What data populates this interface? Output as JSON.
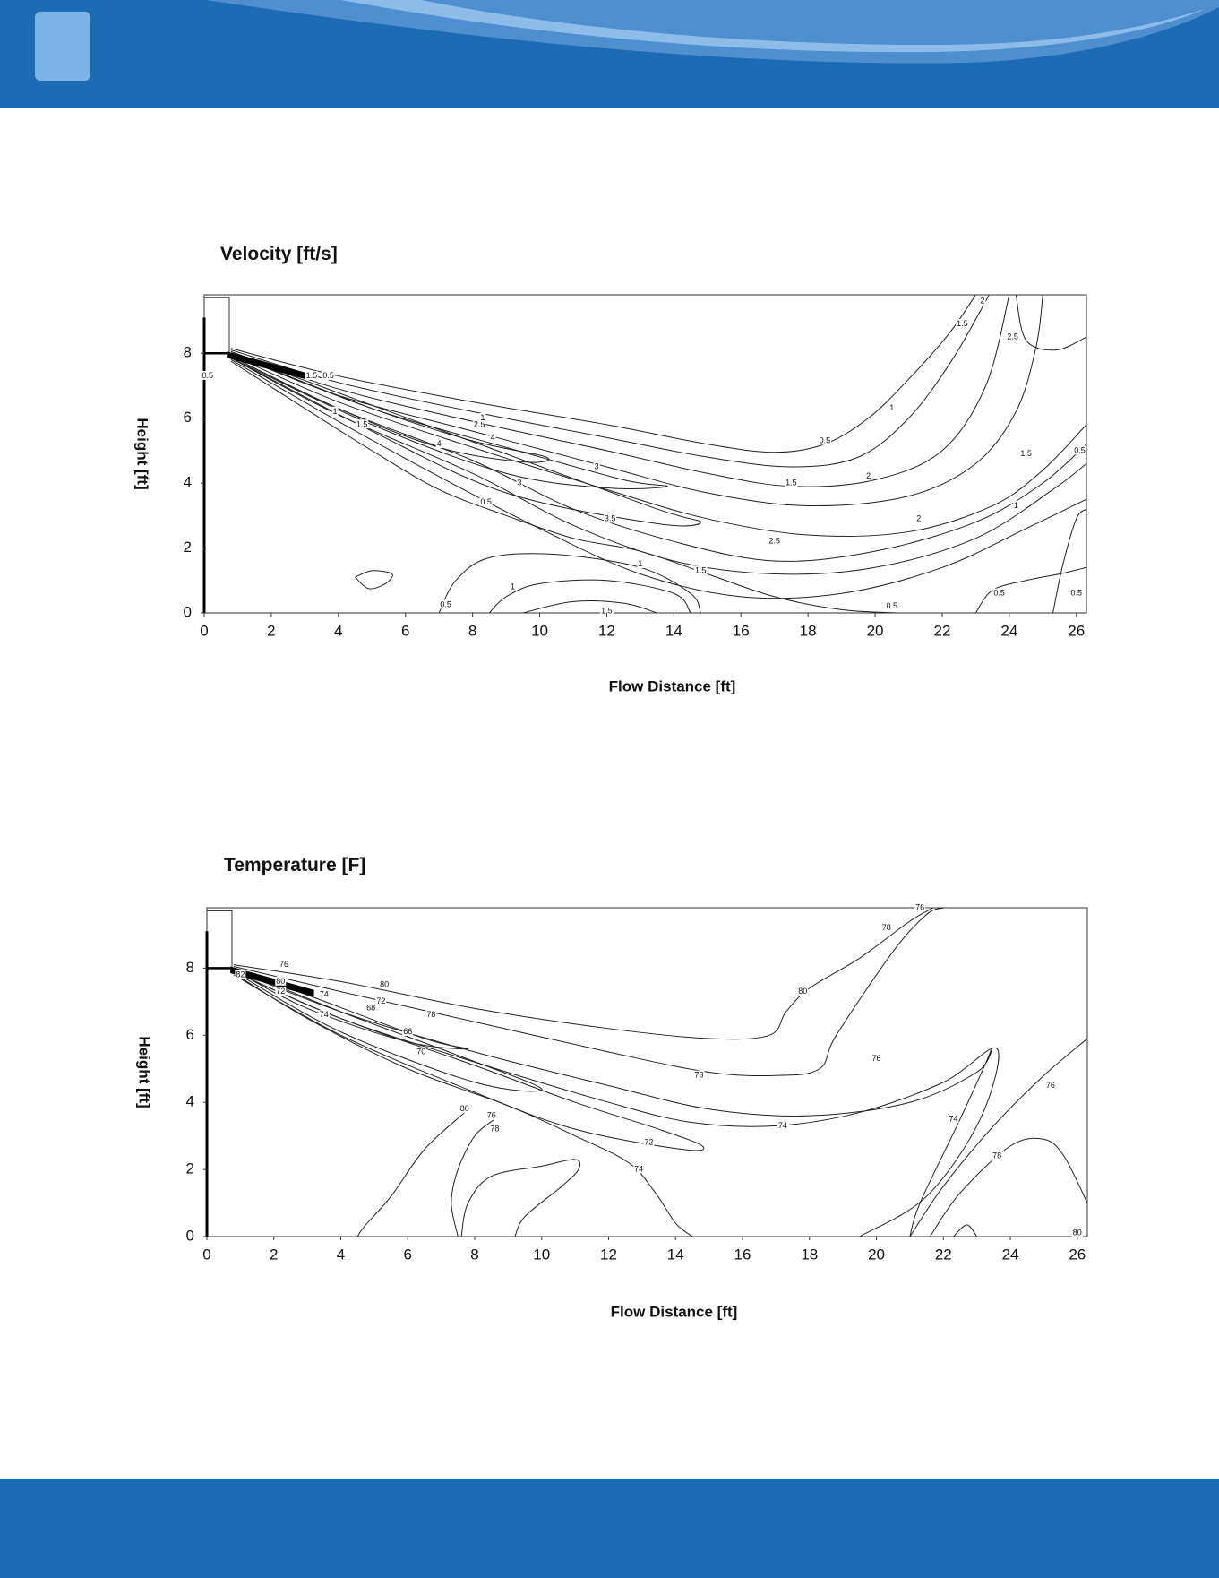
{
  "chart_data": [
    {
      "type": "contour",
      "title": "Velocity [ft/s]",
      "x_label": "Flow Distance [ft]",
      "y_label": "Height [ft]",
      "xlim": [
        0,
        26.3
      ],
      "ylim": [
        0,
        9.8
      ],
      "xticks": [
        0,
        2,
        4,
        6,
        8,
        10,
        12,
        14,
        16,
        18,
        20,
        22,
        24,
        26
      ],
      "yticks": [
        0,
        2,
        4,
        6,
        8
      ],
      "color": "#222222",
      "contours": [
        {
          "x": [
            0.8,
            4,
            8,
            12,
            15,
            17,
            18.5,
            19.8,
            21,
            22.2,
            23
          ],
          "y": [
            8.15,
            7.3,
            6.5,
            5.8,
            5.2,
            4.95,
            5.2,
            6,
            7.2,
            8.6,
            9.8
          ]
        },
        {
          "x": [
            0.8,
            4,
            8,
            12,
            15,
            17.5,
            19.5,
            21,
            22.3,
            23.4
          ],
          "y": [
            8.1,
            7.1,
            6.2,
            5.4,
            4.8,
            4.5,
            4.8,
            6,
            7.8,
            9.8
          ]
        },
        {
          "x": [
            0.8,
            4,
            8,
            12,
            15,
            17.5,
            20,
            22,
            23.3,
            24
          ],
          "y": [
            8.05,
            6.9,
            5.9,
            5,
            4.3,
            3.9,
            4.1,
            5,
            7,
            9.8
          ]
        },
        {
          "x": [
            0.8,
            4,
            8,
            12,
            15,
            18,
            21,
            23,
            24.2,
            24.8,
            25
          ],
          "y": [
            8,
            6.7,
            5.6,
            4.5,
            3.7,
            3.3,
            3.6,
            4.6,
            6.2,
            8.2,
            9.8
          ]
        },
        {
          "x": [
            0.8,
            4,
            8,
            12,
            15,
            18,
            21,
            23.5,
            25,
            26.3
          ],
          "y": [
            7.95,
            6.5,
            5.1,
            3.8,
            2.9,
            2.4,
            2.5,
            3.3,
            4.4,
            5.8
          ]
        },
        {
          "x": [
            0.8,
            4,
            8,
            11,
            14,
            17,
            20,
            23,
            25,
            26.3
          ],
          "y": [
            7.9,
            6.3,
            4.7,
            3.2,
            2.2,
            1.6,
            1.9,
            2.8,
            4,
            5.2
          ]
        },
        {
          "x": [
            0.8,
            4,
            8,
            11,
            14,
            17,
            20,
            23,
            25.3,
            26.3
          ],
          "y": [
            7.85,
            6.1,
            4.3,
            2.7,
            1.6,
            1.2,
            1.4,
            2.3,
            3.8,
            4.6
          ]
        },
        {
          "x": [
            0.8,
            4,
            7,
            10,
            13,
            16,
            19,
            22,
            24.5,
            26.3
          ],
          "y": [
            7.8,
            5.9,
            4.2,
            2.6,
            1.2,
            0.5,
            0.6,
            1.4,
            2.6,
            3.5
          ]
        },
        {
          "x": [
            0.8,
            3,
            5,
            7,
            9,
            11,
            13,
            15,
            17,
            19,
            20.7
          ],
          "y": [
            7.75,
            6.3,
            5,
            3.8,
            3,
            2.3,
            1.9,
            1.2,
            0.5,
            0.1,
            0
          ]
        },
        {
          "x": [
            0.8,
            5,
            9,
            12.5,
            13.8,
            12,
            9,
            5,
            0.8
          ],
          "y": [
            8,
            6.3,
            5.1,
            4.1,
            3.9,
            3.85,
            4.3,
            5.8,
            7.85
          ]
        },
        {
          "x": [
            0.8,
            5,
            9,
            13.5,
            14.8,
            13.5,
            9,
            5,
            0.8
          ],
          "y": [
            8,
            6.4,
            4.9,
            3.2,
            2.8,
            2.75,
            3.7,
            5.6,
            7.85
          ]
        },
        {
          "x": [
            0.8,
            5,
            8,
            10.2,
            9.5,
            7,
            4,
            0.8
          ],
          "y": [
            8,
            6.3,
            5.3,
            4.8,
            4.65,
            5.1,
            6.3,
            7.9
          ]
        },
        {
          "x": [
            4.5,
            5,
            5.6,
            5.4,
            4.9,
            4.5
          ],
          "y": [
            1.1,
            1.3,
            1.2,
            0.9,
            0.75,
            1.1
          ]
        },
        {
          "x": [
            7,
            7.5,
            8.5,
            10.5,
            13,
            14.5,
            14.8
          ],
          "y": [
            0,
            1,
            1.7,
            1.8,
            1.4,
            0.6,
            0
          ]
        },
        {
          "x": [
            8.5,
            9,
            10,
            12,
            14,
            14.5
          ],
          "y": [
            0,
            0.5,
            0.9,
            1,
            0.6,
            0
          ]
        },
        {
          "x": [
            9.5,
            11,
            12.5,
            13.5
          ],
          "y": [
            0,
            0.35,
            0.3,
            0
          ]
        },
        {
          "x": [
            23,
            23.5,
            24.5,
            25.5,
            26.3
          ],
          "y": [
            0,
            0.7,
            1,
            1.2,
            1.4
          ]
        },
        {
          "x": [
            24.2,
            24.5,
            25.4,
            26.3
          ],
          "y": [
            9.8,
            8.4,
            8.1,
            8.5
          ]
        },
        {
          "x": [
            25.3,
            25.6,
            26,
            26.3
          ],
          "y": [
            0,
            1.5,
            2.9,
            3.2
          ]
        }
      ],
      "labels": [
        {
          "value": 0.5,
          "x": 0.1,
          "y": 7.3
        },
        {
          "value": 1.5,
          "x": 3.2,
          "y": 7.3
        },
        {
          "value": 0.5,
          "x": 3.7,
          "y": 7.3
        },
        {
          "value": 1,
          "x": 3.9,
          "y": 6.2
        },
        {
          "value": 1.5,
          "x": 4.7,
          "y": 5.8
        },
        {
          "value": 4,
          "x": 7,
          "y": 5.2
        },
        {
          "value": 2.5,
          "x": 8.2,
          "y": 5.8
        },
        {
          "value": 1,
          "x": 8.3,
          "y": 6.0
        },
        {
          "value": 4,
          "x": 8.6,
          "y": 5.4
        },
        {
          "value": 3,
          "x": 9.4,
          "y": 4.0
        },
        {
          "value": 3,
          "x": 11.7,
          "y": 4.5
        },
        {
          "value": 3.5,
          "x": 12.1,
          "y": 2.9
        },
        {
          "value": 0.5,
          "x": 8.4,
          "y": 3.4
        },
        {
          "value": 1,
          "x": 13,
          "y": 1.5
        },
        {
          "value": 1.5,
          "x": 14.8,
          "y": 1.3
        },
        {
          "value": 2.5,
          "x": 17,
          "y": 2.2
        },
        {
          "value": 0.5,
          "x": 18.5,
          "y": 5.3
        },
        {
          "value": 1.5,
          "x": 17.5,
          "y": 4.0
        },
        {
          "value": 2,
          "x": 19.8,
          "y": 4.2
        },
        {
          "value": 1,
          "x": 20.5,
          "y": 6.3
        },
        {
          "value": 2,
          "x": 21.3,
          "y": 2.9
        },
        {
          "value": 1,
          "x": 9.2,
          "y": 0.8
        },
        {
          "value": 1.5,
          "x": 12,
          "y": 0.05
        },
        {
          "value": 0.5,
          "x": 7.2,
          "y": 0.25
        },
        {
          "value": 0.5,
          "x": 20.5,
          "y": 0.2
        },
        {
          "value": 0.5,
          "x": 23.7,
          "y": 0.6
        },
        {
          "value": 0.5,
          "x": 26,
          "y": 0.6
        },
        {
          "value": 1,
          "x": 24.2,
          "y": 3.3
        },
        {
          "value": 1.5,
          "x": 24.5,
          "y": 4.9
        },
        {
          "value": 1,
          "x": 20.5,
          "y": 6.3
        },
        {
          "value": 1.5,
          "x": 22.6,
          "y": 8.9
        },
        {
          "value": 2,
          "x": 23.2,
          "y": 9.6
        },
        {
          "value": 2.5,
          "x": 24.1,
          "y": 8.5
        },
        {
          "value": 0.5,
          "x": 26.1,
          "y": 5.0
        }
      ]
    },
    {
      "type": "contour",
      "title": "Temperature [F]",
      "x_label": "Flow Distance [ft]",
      "y_label": "Height [ft]",
      "xlim": [
        0,
        26.3
      ],
      "ylim": [
        0,
        9.8
      ],
      "xticks": [
        0,
        2,
        4,
        6,
        8,
        10,
        12,
        14,
        16,
        18,
        20,
        22,
        24,
        26
      ],
      "yticks": [
        0,
        2,
        4,
        6,
        8
      ],
      "color": "#222222",
      "contours": [
        {
          "x": [
            0.8,
            4,
            8,
            12,
            15,
            16.8,
            17.3,
            18,
            19.5,
            21,
            21.7
          ],
          "y": [
            8.1,
            7.6,
            6.8,
            6.2,
            5.9,
            6.0,
            6.7,
            7.4,
            8.3,
            9.4,
            9.8
          ]
        },
        {
          "x": [
            0.8,
            4,
            8,
            12,
            15,
            17,
            18.3,
            18.8,
            20.5,
            21.5,
            22
          ],
          "y": [
            8.05,
            7.3,
            6.4,
            5.5,
            4.9,
            4.8,
            5,
            6,
            8.5,
            9.6,
            9.8
          ]
        },
        {
          "x": [
            0.8,
            4,
            8,
            12,
            15,
            18,
            21,
            23,
            23.4,
            22.5,
            21.3,
            21
          ],
          "y": [
            7.95,
            6.7,
            5.5,
            4.5,
            3.8,
            3.6,
            4.0,
            4.9,
            5.5,
            3.5,
            1.0,
            0
          ]
        },
        {
          "x": [
            0.8,
            4,
            8,
            12,
            14.5,
            17,
            19.5,
            22,
            23.6,
            23.1,
            21.5,
            19.5
          ],
          "y": [
            7.9,
            6.5,
            5.2,
            4,
            3.4,
            3.3,
            3.7,
            4.6,
            5.6,
            3.5,
            1.2,
            0
          ]
        },
        {
          "x": [
            0.8,
            4,
            8,
            11,
            13.5,
            14.8,
            14.2,
            11,
            8,
            4,
            0.8
          ],
          "y": [
            7.9,
            6.5,
            5.1,
            4.0,
            3.2,
            2.7,
            2.6,
            3.2,
            4.3,
            6.0,
            7.8
          ]
        },
        {
          "x": [
            0.8,
            3,
            6,
            9,
            11,
            12.6,
            13.4,
            14,
            14.5
          ],
          "y": [
            7.85,
            6.5,
            5.0,
            3.9,
            3.0,
            2.2,
            1.3,
            0.4,
            0
          ]
        },
        {
          "x": [
            0.8,
            4,
            7.5,
            10,
            8,
            4,
            0.8
          ],
          "y": [
            8.0,
            6.7,
            5.4,
            4.4,
            4.6,
            6.1,
            7.9
          ]
        },
        {
          "x": [
            0.8,
            3,
            6.5,
            7.8,
            6,
            3,
            0.8
          ],
          "y": [
            8,
            7.2,
            5.9,
            5.6,
            5.8,
            6.8,
            7.95
          ]
        },
        {
          "x": [
            8.6,
            8.0,
            7.5,
            7.3,
            7.5
          ],
          "y": [
            3.5,
            3.0,
            2.0,
            1.0,
            0
          ]
        },
        {
          "x": [
            7.7,
            6.5,
            5.5,
            4.7,
            4.5
          ],
          "y": [
            3.7,
            2.6,
            1.2,
            0.3,
            0
          ]
        },
        {
          "x": [
            7.6,
            7.8,
            8.5,
            10,
            11,
            11.1,
            10.6,
            9.5,
            9.2
          ],
          "y": [
            0,
            1.0,
            1.8,
            2.1,
            2.3,
            2.0,
            1.5,
            0.6,
            0
          ]
        },
        {
          "x": [
            21.6,
            22.5,
            24,
            25,
            25.6,
            26.3
          ],
          "y": [
            0,
            1.3,
            2.7,
            2.9,
            2.4,
            1.0
          ]
        },
        {
          "x": [
            21,
            22,
            23.5,
            25,
            26.3
          ],
          "y": [
            0,
            1.5,
            3.3,
            4.8,
            5.9
          ]
        },
        {
          "x": [
            22.3,
            22.7,
            23
          ],
          "y": [
            0,
            0.35,
            0
          ]
        }
      ],
      "labels": [
        {
          "value": 82,
          "x": 1.0,
          "y": 7.8
        },
        {
          "value": 76,
          "x": 2.3,
          "y": 8.1
        },
        {
          "value": 80,
          "x": 2.2,
          "y": 7.6
        },
        {
          "value": 72,
          "x": 2.2,
          "y": 7.3
        },
        {
          "value": 74,
          "x": 3.5,
          "y": 7.2
        },
        {
          "value": 74,
          "x": 3.5,
          "y": 6.6
        },
        {
          "value": 80,
          "x": 5.3,
          "y": 7.5
        },
        {
          "value": 68,
          "x": 4.9,
          "y": 6.8
        },
        {
          "value": 72,
          "x": 5.2,
          "y": 7.0
        },
        {
          "value": 78,
          "x": 6.7,
          "y": 6.6
        },
        {
          "value": 66,
          "x": 6.0,
          "y": 6.1
        },
        {
          "value": 70,
          "x": 6.4,
          "y": 5.5
        },
        {
          "value": 78,
          "x": 14.7,
          "y": 4.8
        },
        {
          "value": 76,
          "x": 20.0,
          "y": 5.3
        },
        {
          "value": 74,
          "x": 17.2,
          "y": 3.3
        },
        {
          "value": 72,
          "x": 13.2,
          "y": 2.8
        },
        {
          "value": 74,
          "x": 12.9,
          "y": 2.0
        },
        {
          "value": 80,
          "x": 7.7,
          "y": 3.8
        },
        {
          "value": 76,
          "x": 8.5,
          "y": 3.6
        },
        {
          "value": 78,
          "x": 8.6,
          "y": 3.2
        },
        {
          "value": 80,
          "x": 17.8,
          "y": 7.3
        },
        {
          "value": 78,
          "x": 20.3,
          "y": 9.2
        },
        {
          "value": 76,
          "x": 21.3,
          "y": 9.8
        },
        {
          "value": 74,
          "x": 22.3,
          "y": 3.5
        },
        {
          "value": 78,
          "x": 23.6,
          "y": 2.4
        },
        {
          "value": 76,
          "x": 25.2,
          "y": 4.5
        },
        {
          "value": 80,
          "x": 26.0,
          "y": 0.1
        }
      ]
    }
  ]
}
